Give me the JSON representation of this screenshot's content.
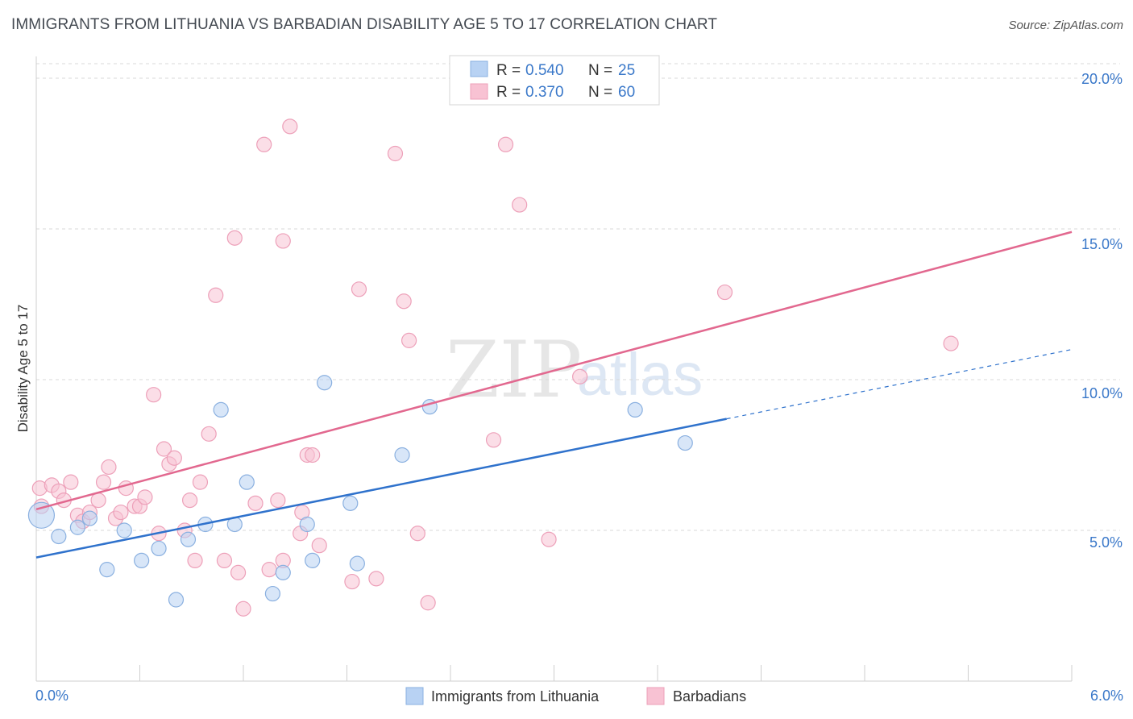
{
  "title": "IMMIGRANTS FROM LITHUANIA VS BARBADIAN DISABILITY AGE 5 TO 17 CORRELATION CHART",
  "source": "Source: ZipAtlas.com",
  "watermark": {
    "part1": "ZIP",
    "part2": "atlas"
  },
  "colors": {
    "blue_fill": "#b8d2f3",
    "blue_line": "#2f72cc",
    "blue_stroke": "#8ab0e0",
    "pink_fill": "#f8c2d3",
    "pink_line": "#e2688f",
    "pink_stroke": "#eda0b9",
    "axis_label": "#3a78c9",
    "grid": "#d8d8d8"
  },
  "stats": [
    {
      "r_label": "R =",
      "r_value": "0.540",
      "n_label": "N =",
      "n_value": "25"
    },
    {
      "r_label": "R =",
      "r_value": "0.370",
      "n_label": "N =",
      "n_value": "60"
    }
  ],
  "chart_data": {
    "type": "scatter",
    "title": "IMMIGRANTS FROM LITHUANIA VS BARBADIAN DISABILITY AGE 5 TO 17 CORRELATION CHART",
    "xlabel": "",
    "ylabel": "Disability Age 5 to 17",
    "xlim": [
      0,
      6
    ],
    "ylim": [
      0,
      20.5
    ],
    "x_tick_labels": [
      "0.0%",
      "6.0%"
    ],
    "y_ticks": [
      5,
      10,
      15,
      20
    ],
    "y_tick_labels": [
      "5.0%",
      "10.0%",
      "15.0%",
      "20.0%"
    ],
    "grid": true,
    "legend_position": "bottom-center",
    "series": [
      {
        "name": "Immigrants from Lithuania",
        "color": "#b8d2f3",
        "points": [
          {
            "x": 0.03,
            "y": 5.5,
            "big": true
          },
          {
            "x": 0.13,
            "y": 4.8
          },
          {
            "x": 0.24,
            "y": 5.1
          },
          {
            "x": 0.31,
            "y": 5.4
          },
          {
            "x": 0.41,
            "y": 3.7
          },
          {
            "x": 0.51,
            "y": 5.0
          },
          {
            "x": 0.61,
            "y": 4.0
          },
          {
            "x": 0.71,
            "y": 4.4
          },
          {
            "x": 0.81,
            "y": 2.7
          },
          {
            "x": 0.88,
            "y": 4.7
          },
          {
            "x": 0.98,
            "y": 5.2
          },
          {
            "x": 1.07,
            "y": 9.0
          },
          {
            "x": 1.15,
            "y": 5.2
          },
          {
            "x": 1.22,
            "y": 6.6
          },
          {
            "x": 1.37,
            "y": 2.9
          },
          {
            "x": 1.43,
            "y": 3.6
          },
          {
            "x": 1.57,
            "y": 5.2
          },
          {
            "x": 1.6,
            "y": 4.0
          },
          {
            "x": 1.67,
            "y": 9.9
          },
          {
            "x": 1.82,
            "y": 5.9
          },
          {
            "x": 1.86,
            "y": 3.9
          },
          {
            "x": 2.12,
            "y": 7.5
          },
          {
            "x": 2.28,
            "y": 9.1
          },
          {
            "x": 3.47,
            "y": 9.0
          },
          {
            "x": 3.76,
            "y": 7.9
          }
        ],
        "trend": {
          "x": [
            0.0,
            4.0
          ],
          "y": [
            4.1,
            8.7
          ]
        },
        "trend_dashed": {
          "x": [
            4.0,
            6.0
          ],
          "y": [
            8.7,
            11.0
          ]
        }
      },
      {
        "name": "Barbadians",
        "color": "#f8c2d3",
        "points": [
          {
            "x": 0.02,
            "y": 6.4
          },
          {
            "x": 0.03,
            "y": 5.8
          },
          {
            "x": 0.09,
            "y": 6.5
          },
          {
            "x": 0.13,
            "y": 6.3
          },
          {
            "x": 0.16,
            "y": 6.0
          },
          {
            "x": 0.2,
            "y": 6.6
          },
          {
            "x": 0.24,
            "y": 5.5
          },
          {
            "x": 0.27,
            "y": 5.3
          },
          {
            "x": 0.31,
            "y": 5.6
          },
          {
            "x": 0.36,
            "y": 6.0
          },
          {
            "x": 0.39,
            "y": 6.6
          },
          {
            "x": 0.42,
            "y": 7.1
          },
          {
            "x": 0.46,
            "y": 5.4
          },
          {
            "x": 0.49,
            "y": 5.6
          },
          {
            "x": 0.52,
            "y": 6.4
          },
          {
            "x": 0.57,
            "y": 5.8
          },
          {
            "x": 0.6,
            "y": 5.8
          },
          {
            "x": 0.63,
            "y": 6.1
          },
          {
            "x": 0.68,
            "y": 9.5
          },
          {
            "x": 0.71,
            "y": 4.9
          },
          {
            "x": 0.74,
            "y": 7.7
          },
          {
            "x": 0.77,
            "y": 7.2
          },
          {
            "x": 0.8,
            "y": 7.4
          },
          {
            "x": 0.86,
            "y": 5.0
          },
          {
            "x": 0.89,
            "y": 6.0
          },
          {
            "x": 0.92,
            "y": 4.0
          },
          {
            "x": 0.95,
            "y": 6.6
          },
          {
            "x": 1.0,
            "y": 8.2
          },
          {
            "x": 1.04,
            "y": 12.8
          },
          {
            "x": 1.09,
            "y": 4.0
          },
          {
            "x": 1.15,
            "y": 14.7
          },
          {
            "x": 1.17,
            "y": 3.6
          },
          {
            "x": 1.2,
            "y": 2.4
          },
          {
            "x": 1.27,
            "y": 5.9
          },
          {
            "x": 1.32,
            "y": 17.8
          },
          {
            "x": 1.35,
            "y": 3.7
          },
          {
            "x": 1.4,
            "y": 6.0
          },
          {
            "x": 1.43,
            "y": 4.0
          },
          {
            "x": 1.43,
            "y": 14.6
          },
          {
            "x": 1.47,
            "y": 18.4
          },
          {
            "x": 1.53,
            "y": 4.9
          },
          {
            "x": 1.54,
            "y": 5.6
          },
          {
            "x": 1.57,
            "y": 7.5
          },
          {
            "x": 1.6,
            "y": 7.5
          },
          {
            "x": 1.64,
            "y": 4.5
          },
          {
            "x": 1.83,
            "y": 3.3
          },
          {
            "x": 1.87,
            "y": 13.0
          },
          {
            "x": 1.97,
            "y": 3.4
          },
          {
            "x": 2.08,
            "y": 17.5
          },
          {
            "x": 2.13,
            "y": 12.6
          },
          {
            "x": 2.16,
            "y": 11.3
          },
          {
            "x": 2.21,
            "y": 4.9
          },
          {
            "x": 2.27,
            "y": 2.6
          },
          {
            "x": 2.65,
            "y": 8.0
          },
          {
            "x": 2.72,
            "y": 17.8
          },
          {
            "x": 2.8,
            "y": 15.8
          },
          {
            "x": 2.97,
            "y": 4.7
          },
          {
            "x": 3.15,
            "y": 10.1
          },
          {
            "x": 3.99,
            "y": 12.9
          },
          {
            "x": 5.3,
            "y": 11.2
          }
        ],
        "trend": {
          "x": [
            0.0,
            6.0
          ],
          "y": [
            5.7,
            14.9
          ]
        }
      }
    ]
  }
}
